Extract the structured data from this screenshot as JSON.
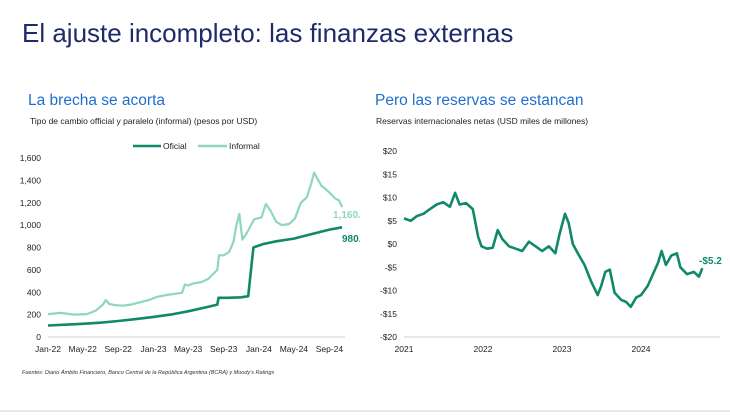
{
  "slide": {
    "title": "El ajuste incompleto: las finanzas externas",
    "footer": "Fuentes: Diario Ámbito Financiero, Banco Central de la República Argentina (BCRA) y Moody's Ratings"
  },
  "colors": {
    "oficial": "#10896a",
    "informal": "#8fd6bf",
    "title": "#1f2a6b",
    "accent": "#1f6fd0"
  },
  "chart_data": [
    {
      "type": "line",
      "panel_title": "La brecha se acorta",
      "subtitle": "Tipo de cambio official y paralelo (informal) (pesos por USD)",
      "legend": [
        "Oficial",
        "Informal"
      ],
      "legend_position": "top",
      "x_ticks": [
        "Jan-22",
        "May-22",
        "Sep-22",
        "Jan-23",
        "May-23",
        "Sep-23",
        "Jan-24",
        "May-24",
        "Sep-24"
      ],
      "y_ticks": [
        "0",
        "200",
        "400",
        "600",
        "800",
        "1,000",
        "1,200",
        "1,400",
        "1,600"
      ],
      "ylim": [
        0,
        1600
      ],
      "grid": false,
      "series": [
        {
          "name": "Oficial",
          "end_label": "980.3",
          "points": [
            [
              "2022-01-01",
              103
            ],
            [
              "2022-03-01",
              110
            ],
            [
              "2022-05-01",
              118
            ],
            [
              "2022-07-01",
              128
            ],
            [
              "2022-09-01",
              143
            ],
            [
              "2022-11-01",
              160
            ],
            [
              "2023-01-01",
              180
            ],
            [
              "2023-03-01",
              200
            ],
            [
              "2023-05-01",
              230
            ],
            [
              "2023-07-01",
              265
            ],
            [
              "2023-08-10",
              290
            ],
            [
              "2023-08-14",
              350
            ],
            [
              "2023-09-15",
              350
            ],
            [
              "2023-11-01",
              355
            ],
            [
              "2023-11-25",
              365
            ],
            [
              "2023-12-13",
              800
            ],
            [
              "2024-01-15",
              830
            ],
            [
              "2024-03-01",
              855
            ],
            [
              "2024-05-01",
              880
            ],
            [
              "2024-07-01",
              920
            ],
            [
              "2024-09-01",
              960
            ],
            [
              "2024-10-15",
              980.3
            ]
          ]
        },
        {
          "name": "Informal",
          "end_label": "1,160.0",
          "points": [
            [
              "2022-01-01",
              205
            ],
            [
              "2022-02-15",
              215
            ],
            [
              "2022-04-01",
              200
            ],
            [
              "2022-05-15",
              205
            ],
            [
              "2022-06-15",
              235
            ],
            [
              "2022-07-10",
              290
            ],
            [
              "2022-07-20",
              330
            ],
            [
              "2022-08-01",
              295
            ],
            [
              "2022-08-20",
              285
            ],
            [
              "2022-09-15",
              280
            ],
            [
              "2022-10-15",
              290
            ],
            [
              "2022-11-15",
              310
            ],
            [
              "2022-12-15",
              330
            ],
            [
              "2023-01-15",
              360
            ],
            [
              "2023-02-15",
              375
            ],
            [
              "2023-03-15",
              385
            ],
            [
              "2023-04-10",
              395
            ],
            [
              "2023-04-20",
              470
            ],
            [
              "2023-05-01",
              460
            ],
            [
              "2023-05-20",
              480
            ],
            [
              "2023-06-15",
              490
            ],
            [
              "2023-07-10",
              520
            ],
            [
              "2023-07-25",
              560
            ],
            [
              "2023-08-10",
              600
            ],
            [
              "2023-08-16",
              730
            ],
            [
              "2023-09-01",
              730
            ],
            [
              "2023-09-20",
              760
            ],
            [
              "2023-10-05",
              850
            ],
            [
              "2023-10-15",
              1000
            ],
            [
              "2023-10-25",
              1100
            ],
            [
              "2023-11-05",
              870
            ],
            [
              "2023-11-20",
              930
            ],
            [
              "2023-12-05",
              1000
            ],
            [
              "2023-12-15",
              1050
            ],
            [
              "2024-01-10",
              1070
            ],
            [
              "2024-01-25",
              1190
            ],
            [
              "2024-02-10",
              1130
            ],
            [
              "2024-03-01",
              1030
            ],
            [
              "2024-03-20",
              1000
            ],
            [
              "2024-04-15",
              1010
            ],
            [
              "2024-05-05",
              1060
            ],
            [
              "2024-05-25",
              1200
            ],
            [
              "2024-06-15",
              1250
            ],
            [
              "2024-07-01",
              1380
            ],
            [
              "2024-07-10",
              1470
            ],
            [
              "2024-07-20",
              1420
            ],
            [
              "2024-08-05",
              1350
            ],
            [
              "2024-08-20",
              1320
            ],
            [
              "2024-09-05",
              1280
            ],
            [
              "2024-09-20",
              1240
            ],
            [
              "2024-10-05",
              1220
            ],
            [
              "2024-10-15",
              1160
            ]
          ]
        }
      ]
    },
    {
      "type": "line",
      "panel_title": "Pero las reservas se estancan",
      "subtitle": "Reservas internacionales netas (USD miles de millones)",
      "x_ticks": [
        "2021",
        "2022",
        "2023",
        "2024"
      ],
      "y_ticks": [
        "-$20",
        "-$15",
        "-$10",
        "-$5",
        "$0",
        "$5",
        "$10",
        "$15",
        "$20"
      ],
      "ylim": [
        -20,
        20
      ],
      "grid": false,
      "series": [
        {
          "name": "",
          "end_label": "-$5.2",
          "points": [
            [
              "2021-01-01",
              5.5
            ],
            [
              "2021-02-01",
              5.0
            ],
            [
              "2021-03-01",
              6.0
            ],
            [
              "2021-04-01",
              6.5
            ],
            [
              "2021-05-01",
              7.5
            ],
            [
              "2021-06-01",
              8.5
            ],
            [
              "2021-07-01",
              9.0
            ],
            [
              "2021-08-01",
              8.0
            ],
            [
              "2021-08-25",
              11.0
            ],
            [
              "2021-09-15",
              8.5
            ],
            [
              "2021-10-15",
              8.8
            ],
            [
              "2021-11-15",
              7.5
            ],
            [
              "2021-12-10",
              1.5
            ],
            [
              "2021-12-25",
              -0.5
            ],
            [
              "2022-01-20",
              -1.0
            ],
            [
              "2022-02-15",
              -0.8
            ],
            [
              "2022-03-10",
              3.0
            ],
            [
              "2022-04-01",
              1.0
            ],
            [
              "2022-05-01",
              -0.5
            ],
            [
              "2022-06-01",
              -1.0
            ],
            [
              "2022-07-01",
              -1.5
            ],
            [
              "2022-08-01",
              0.5
            ],
            [
              "2022-09-01",
              -0.5
            ],
            [
              "2022-10-01",
              -1.5
            ],
            [
              "2022-11-01",
              -0.5
            ],
            [
              "2022-12-01",
              -2.0
            ],
            [
              "2022-12-20",
              2.0
            ],
            [
              "2023-01-15",
              6.5
            ],
            [
              "2023-02-01",
              4.5
            ],
            [
              "2023-02-20",
              0.0
            ],
            [
              "2023-03-15",
              -2.0
            ],
            [
              "2023-04-15",
              -4.5
            ],
            [
              "2023-05-15",
              -8.0
            ],
            [
              "2023-06-15",
              -11.0
            ],
            [
              "2023-07-01",
              -9.0
            ],
            [
              "2023-07-20",
              -6.0
            ],
            [
              "2023-08-10",
              -5.5
            ],
            [
              "2023-09-01",
              -10.5
            ],
            [
              "2023-10-01",
              -12.0
            ],
            [
              "2023-10-25",
              -12.5
            ],
            [
              "2023-11-15",
              -13.5
            ],
            [
              "2023-12-10",
              -11.5
            ],
            [
              "2024-01-01",
              -11.0
            ],
            [
              "2024-02-01",
              -9.0
            ],
            [
              "2024-03-01",
              -6.0
            ],
            [
              "2024-03-20",
              -4.0
            ],
            [
              "2024-04-05",
              -1.5
            ],
            [
              "2024-04-25",
              -4.5
            ],
            [
              "2024-05-20",
              -2.5
            ],
            [
              "2024-06-15",
              -2.0
            ],
            [
              "2024-07-01",
              -5.0
            ],
            [
              "2024-08-01",
              -6.5
            ],
            [
              "2024-09-01",
              -6.0
            ],
            [
              "2024-09-25",
              -7.0
            ],
            [
              "2024-10-10",
              -5.2
            ]
          ]
        }
      ]
    }
  ]
}
